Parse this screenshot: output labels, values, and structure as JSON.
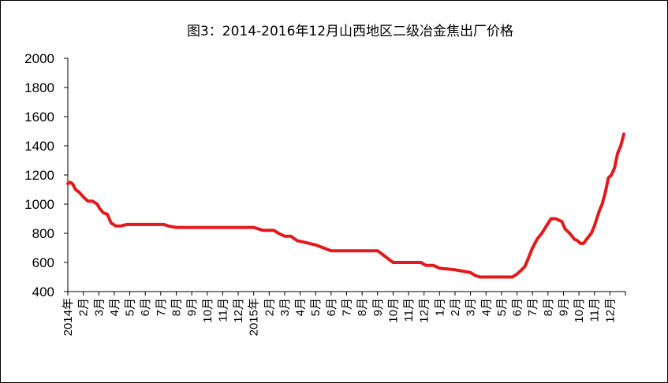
{
  "chart_data": {
    "type": "line",
    "title": "图3：2014-2016年12月山西地区二级冶金焦出厂价格",
    "xlabel": "",
    "ylabel": "",
    "ylim": [
      400,
      2000
    ],
    "yticks": [
      "2000",
      "1800",
      "1600",
      "1400",
      "1200",
      "1000",
      "800",
      "600",
      "400"
    ],
    "ytick_values": [
      2000,
      1800,
      1600,
      1400,
      1200,
      1000,
      800,
      600,
      400
    ],
    "xticks": [
      "2014年",
      "2月",
      "3月",
      "4月",
      "5月",
      "6月",
      "7月",
      "8月",
      "9月",
      "10月",
      "11月",
      "12月",
      "2015年",
      "2月",
      "3月",
      "4月",
      "5月",
      "6月",
      "7月",
      "8月",
      "9月",
      "10月",
      "11月",
      "12月",
      "1月",
      "2月",
      "3月",
      "4月",
      "5月",
      "6月",
      "7月",
      "8月",
      "9月",
      "10月",
      "11月",
      "12月"
    ],
    "x_range_months": [
      0,
      36
    ],
    "grid": false,
    "legend": "none",
    "line_color": "#e31a1c",
    "series": [
      {
        "x": [
          0,
          0.15,
          0.3,
          0.5,
          0.75,
          1.0,
          1.3,
          1.6,
          1.9,
          2.05,
          2.3,
          2.55,
          2.8,
          3.1,
          3.4,
          3.8,
          4.5,
          5.5,
          6.0,
          6.2,
          6.5,
          7.0,
          8.0,
          9.0,
          10.0,
          11.0,
          11.5,
          12.0,
          12.3,
          12.6,
          13.0,
          13.3,
          13.6,
          14.0,
          14.4,
          14.8,
          15.2,
          15.6,
          16.0,
          16.5,
          17.0,
          17.5,
          18.0,
          18.3,
          18.6,
          18.8,
          19.1,
          19.5,
          20.0,
          20.5,
          21.0,
          21.4,
          21.8,
          22.2,
          22.5,
          22.8,
          23.1,
          23.3,
          23.6,
          24.0,
          25.0,
          26.0,
          26.3,
          26.6,
          27.0,
          27.3,
          27.6,
          27.9,
          28.1,
          28.4,
          28.7,
          29.0,
          29.2,
          29.5,
          29.7,
          30.0,
          30.3,
          30.6,
          30.9,
          31.2,
          31.5,
          31.9,
          32.1,
          32.4,
          32.7,
          32.9,
          33.1,
          33.3,
          33.5,
          33.8,
          34.0,
          34.3,
          34.5,
          34.7,
          34.9,
          35.1,
          35.3,
          35.5,
          35.7,
          35.9
        ],
        "values": [
          1140,
          1150,
          1140,
          1100,
          1080,
          1050,
          1020,
          1020,
          1000,
          970,
          940,
          930,
          870,
          850,
          850,
          860,
          860,
          860,
          860,
          860,
          850,
          840,
          840,
          840,
          840,
          840,
          840,
          840,
          830,
          820,
          820,
          820,
          800,
          780,
          780,
          750,
          740,
          730,
          720,
          700,
          680,
          680,
          680,
          680,
          680,
          680,
          680,
          680,
          680,
          640,
          600,
          600,
          600,
          600,
          600,
          600,
          580,
          580,
          580,
          560,
          550,
          530,
          510,
          500,
          500,
          500,
          500,
          500,
          500,
          500,
          500,
          520,
          540,
          570,
          620,
          700,
          760,
          800,
          850,
          900,
          900,
          880,
          830,
          800,
          760,
          750,
          730,
          730,
          760,
          800,
          850,
          950,
          1000,
          1080,
          1180,
          1200,
          1250,
          1350,
          1400,
          1480
        ]
      }
    ]
  }
}
